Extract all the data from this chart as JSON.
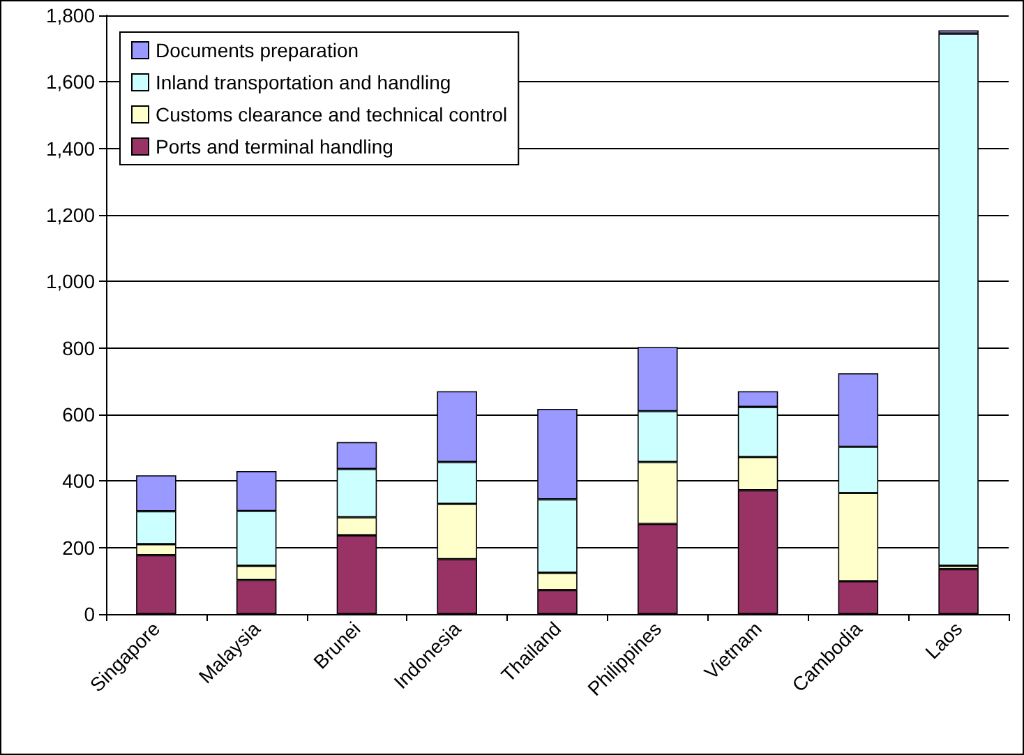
{
  "chart_data": {
    "type": "bar",
    "stacked": true,
    "categories": [
      "Singapore",
      "Malaysia",
      "Brunei",
      "Indonesia",
      "Thailand",
      "Philippines",
      "Vietnam",
      "Cambodia",
      "Laos"
    ],
    "series": [
      {
        "name": "Ports and terminal handling",
        "color": "#993366",
        "values": [
          177,
          102,
          237,
          165,
          72,
          271,
          372,
          99,
          135
        ]
      },
      {
        "name": "Customs clearance and technical control",
        "color": "#ffffcc",
        "values": [
          33,
          43,
          54,
          166,
          52,
          186,
          100,
          265,
          10
        ]
      },
      {
        "name": "Inland transportation and handling",
        "color": "#ccffff",
        "values": [
          99,
          165,
          145,
          126,
          221,
          153,
          151,
          139,
          1600
        ]
      },
      {
        "name": "Documents preparation",
        "color": "#9999ff",
        "values": [
          108,
          120,
          81,
          213,
          272,
          193,
          47,
          221,
          10
        ]
      }
    ],
    "ylim": [
      0,
      1800
    ],
    "yticks": [
      0,
      200,
      400,
      600,
      800,
      {
        "value": 1000,
        "label": "1,000"
      },
      {
        "value": 1200,
        "label": "1,200"
      },
      {
        "value": 1400,
        "label": "1,400"
      },
      {
        "value": 1600,
        "label": "1,600"
      },
      {
        "value": 1800,
        "label": "1,800"
      }
    ],
    "grid": "y",
    "legend": "top left"
  }
}
